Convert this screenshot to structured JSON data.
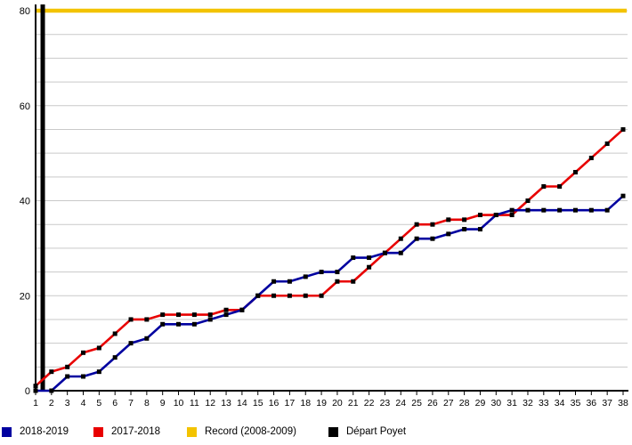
{
  "chart_data": {
    "type": "line",
    "title": "",
    "xlabel": "",
    "ylabel": "",
    "ylim": [
      0,
      80
    ],
    "yticks": [
      0,
      20,
      40,
      60,
      80
    ],
    "grid_step": 5,
    "grid_on": true,
    "legend_position": "bottom",
    "xticks": [
      1,
      2,
      3,
      4,
      5,
      6,
      7,
      8,
      9,
      10,
      11,
      12,
      13,
      14,
      15,
      16,
      17,
      18,
      19,
      20,
      21,
      22,
      23,
      24,
      25,
      26,
      27,
      28,
      29,
      30,
      31,
      32,
      33,
      34,
      35,
      36,
      37,
      38
    ],
    "series": [
      {
        "name": "2018-2019",
        "color": "#0000a0",
        "values": [
          0,
          0,
          3,
          3,
          4,
          7,
          10,
          11,
          14,
          14,
          14,
          15,
          16,
          17,
          20,
          23,
          23,
          24,
          25,
          25,
          28,
          28,
          29,
          29,
          32,
          32,
          33,
          34,
          34,
          37,
          38,
          38,
          38,
          38,
          38,
          38,
          38,
          41
        ]
      },
      {
        "name": "2017-2018",
        "color": "#e80000",
        "values": [
          1,
          4,
          5,
          8,
          9,
          12,
          15,
          15,
          16,
          16,
          16,
          16,
          17,
          17,
          20,
          20,
          20,
          20,
          20,
          23,
          23,
          26,
          29,
          32,
          35,
          35,
          36,
          36,
          37,
          37,
          37,
          40,
          43,
          43,
          46,
          49,
          52,
          55
        ]
      }
    ],
    "reference_lines": {
      "record": {
        "label": "Record (2008-2009)",
        "color": "#f3c300",
        "y": 80
      },
      "event": {
        "label": "Départ Poyet",
        "color": "#000000",
        "x": 1.45
      }
    },
    "marker": {
      "shape": "square",
      "color": "#000000",
      "size": 5
    }
  },
  "legend": {
    "items": [
      {
        "key": "2018-2019",
        "label": "2018-2019",
        "color": "#0000a0"
      },
      {
        "key": "2017-2018",
        "label": "2017-2018",
        "color": "#e80000"
      },
      {
        "key": "record",
        "label": "Record (2008-2009)",
        "color": "#f3c300"
      },
      {
        "key": "depart-poyet",
        "label": "Départ Poyet",
        "color": "#000000"
      }
    ]
  }
}
